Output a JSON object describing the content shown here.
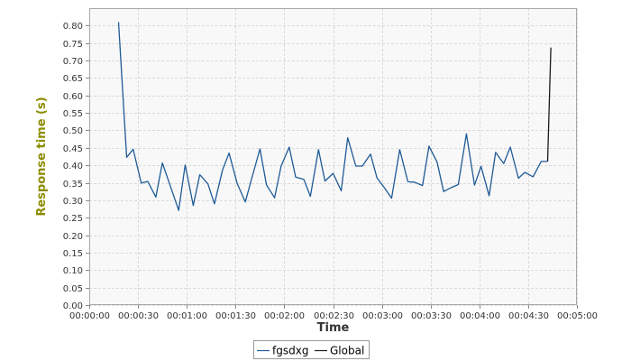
{
  "chart_data": {
    "type": "line",
    "xlabel": "Time",
    "ylabel": "Response time (s)",
    "xlim": [
      0,
      300
    ],
    "ylim": [
      0,
      0.85
    ],
    "grid": true,
    "legend_position": "bottom",
    "x_tick_values": [
      0,
      30,
      60,
      90,
      120,
      150,
      180,
      210,
      240,
      270,
      300
    ],
    "x_tick_labels": [
      "00:00:00",
      "00:00:30",
      "00:01:00",
      "00:01:30",
      "00:02:00",
      "00:02:30",
      "00:03:00",
      "00:03:30",
      "00:04:00",
      "00:04:30",
      "00:05:00"
    ],
    "y_tick_values": [
      0,
      0.05,
      0.1,
      0.15,
      0.2,
      0.25,
      0.3,
      0.35,
      0.4,
      0.45,
      0.5,
      0.55,
      0.6,
      0.65,
      0.7,
      0.75,
      0.8
    ],
    "y_tick_labels": [
      "0.00",
      "0.05",
      "0.10",
      "0.15",
      "0.20",
      "0.25",
      "0.30",
      "0.35",
      "0.40",
      "0.45",
      "0.50",
      "0.55",
      "0.60",
      "0.65",
      "0.70",
      "0.75",
      "0.80"
    ],
    "colors": {
      "ylabel": "#8c8c00",
      "xlabel": "#333333",
      "plot_background": "#f8f8f8",
      "grid": "#dadada",
      "series": [
        "#1f5a96",
        "#1a1a1a"
      ]
    },
    "series": [
      {
        "name": "fgsdxg",
        "x": [
          18,
          23,
          27,
          32,
          36,
          41,
          45,
          50,
          55,
          59,
          64,
          68,
          73,
          77,
          82,
          86,
          91,
          96,
          100,
          105,
          109,
          114,
          118,
          123,
          127,
          132,
          136,
          141,
          145,
          150,
          155,
          159,
          164,
          168,
          173,
          177,
          182,
          186,
          191,
          196,
          200,
          205,
          209,
          214,
          218,
          223,
          227,
          232,
          237,
          241,
          246,
          250,
          255,
          259,
          264,
          268,
          273,
          278,
          282
        ],
        "y": [
          0.81,
          0.423,
          0.446,
          0.349,
          0.354,
          0.309,
          0.407,
          0.339,
          0.271,
          0.401,
          0.285,
          0.373,
          0.347,
          0.29,
          0.387,
          0.435,
          0.348,
          0.295,
          0.363,
          0.447,
          0.344,
          0.307,
          0.397,
          0.452,
          0.366,
          0.36,
          0.311,
          0.445,
          0.355,
          0.377,
          0.327,
          0.479,
          0.398,
          0.398,
          0.432,
          0.364,
          0.333,
          0.306,
          0.445,
          0.353,
          0.352,
          0.342,
          0.455,
          0.409,
          0.325,
          0.337,
          0.345,
          0.49,
          0.343,
          0.397,
          0.313,
          0.437,
          0.405,
          0.452,
          0.363,
          0.38,
          0.367,
          0.411,
          0.411
        ]
      },
      {
        "name": "Global",
        "x": [
          282,
          284
        ],
        "y": [
          0.411,
          0.737
        ]
      }
    ]
  }
}
